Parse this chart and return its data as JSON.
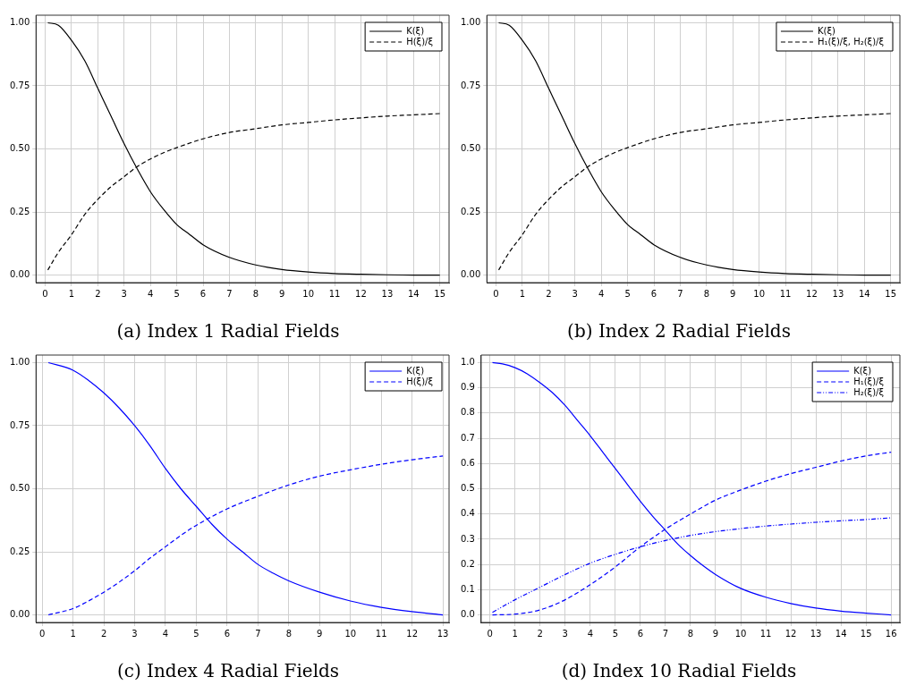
{
  "chart_data": [
    {
      "type": "line",
      "title": "(a) Index 1 Radial Fields",
      "xlim": [
        -0.35,
        15.35
      ],
      "ylim": [
        -0.03,
        1.03
      ],
      "xticks": [
        0,
        1,
        2,
        3,
        4,
        5,
        6,
        7,
        8,
        9,
        10,
        11,
        12,
        13,
        14,
        15
      ],
      "yticks": [
        {
          "value": 0,
          "label": "0.00"
        },
        {
          "value": 0.25,
          "label": "0.25"
        },
        {
          "value": 0.5,
          "label": "0.50"
        },
        {
          "value": 0.75,
          "label": "0.75"
        },
        {
          "value": 1,
          "label": "1.00"
        }
      ],
      "grid": true,
      "legend": "top right",
      "marker": "none",
      "series": [
        {
          "name": "K(ξ)",
          "color": "#000000",
          "line_style": "solid",
          "x": [
            0.1,
            0.5,
            1,
            1.5,
            2,
            2.5,
            3,
            3.5,
            4,
            4.5,
            5,
            5.5,
            6,
            7,
            8,
            9,
            10,
            11,
            12,
            13,
            14,
            15
          ],
          "values": [
            1.0,
            0.99,
            0.93,
            0.85,
            0.74,
            0.63,
            0.52,
            0.42,
            0.33,
            0.26,
            0.2,
            0.16,
            0.12,
            0.07,
            0.04,
            0.022,
            0.012,
            0.006,
            0.003,
            0.001,
            0.0,
            0.0
          ]
        },
        {
          "name": "H(ξ)/ξ",
          "color": "#000000",
          "line_style": "dashed",
          "x": [
            0.1,
            0.5,
            1,
            1.5,
            2,
            2.5,
            3,
            3.5,
            4,
            4.5,
            5,
            6,
            7,
            8,
            9,
            10,
            11,
            12,
            13,
            14,
            15
          ],
          "values": [
            0.02,
            0.09,
            0.16,
            0.24,
            0.3,
            0.35,
            0.39,
            0.43,
            0.46,
            0.485,
            0.505,
            0.54,
            0.565,
            0.58,
            0.595,
            0.605,
            0.615,
            0.623,
            0.63,
            0.635,
            0.64
          ]
        }
      ]
    },
    {
      "type": "line",
      "title": "(b) Index 2 Radial Fields",
      "xlim": [
        -0.35,
        15.35
      ],
      "ylim": [
        -0.03,
        1.03
      ],
      "xticks": [
        0,
        1,
        2,
        3,
        4,
        5,
        6,
        7,
        8,
        9,
        10,
        11,
        12,
        13,
        14,
        15
      ],
      "yticks": [
        {
          "value": 0,
          "label": "0.00"
        },
        {
          "value": 0.25,
          "label": "0.25"
        },
        {
          "value": 0.5,
          "label": "0.50"
        },
        {
          "value": 0.75,
          "label": "0.75"
        },
        {
          "value": 1,
          "label": "1.00"
        }
      ],
      "grid": true,
      "legend": "top right",
      "marker": "none",
      "series": [
        {
          "name": "K(ξ)",
          "color": "#000000",
          "line_style": "solid",
          "x": [
            0.1,
            0.5,
            1,
            1.5,
            2,
            2.5,
            3,
            3.5,
            4,
            4.5,
            5,
            5.5,
            6,
            7,
            8,
            9,
            10,
            11,
            12,
            13,
            14,
            15
          ],
          "values": [
            1.0,
            0.99,
            0.93,
            0.85,
            0.74,
            0.63,
            0.52,
            0.42,
            0.33,
            0.26,
            0.2,
            0.16,
            0.12,
            0.07,
            0.04,
            0.022,
            0.012,
            0.006,
            0.003,
            0.001,
            0.0,
            0.0
          ]
        },
        {
          "name": "H₁(ξ)/ξ, H₂(ξ)/ξ",
          "color": "#000000",
          "line_style": "dashed",
          "x": [
            0.1,
            0.5,
            1,
            1.5,
            2,
            2.5,
            3,
            3.5,
            4,
            4.5,
            5,
            6,
            7,
            8,
            9,
            10,
            11,
            12,
            13,
            14,
            15
          ],
          "values": [
            0.02,
            0.09,
            0.16,
            0.24,
            0.3,
            0.35,
            0.39,
            0.43,
            0.46,
            0.485,
            0.505,
            0.54,
            0.565,
            0.58,
            0.595,
            0.605,
            0.615,
            0.623,
            0.63,
            0.635,
            0.64
          ]
        }
      ]
    },
    {
      "type": "line",
      "title": "(c) Index 4 Radial Fields",
      "xlim": [
        -0.2,
        13.2
      ],
      "ylim": [
        -0.03,
        1.03
      ],
      "xticks": [
        0,
        1,
        2,
        3,
        4,
        5,
        6,
        7,
        8,
        9,
        10,
        11,
        12,
        13
      ],
      "yticks": [
        {
          "value": 0,
          "label": "0.00"
        },
        {
          "value": 0.25,
          "label": "0.25"
        },
        {
          "value": 0.5,
          "label": "0.50"
        },
        {
          "value": 0.75,
          "label": "0.75"
        },
        {
          "value": 1,
          "label": "1.00"
        }
      ],
      "grid": true,
      "legend": "top right",
      "marker": "none",
      "series": [
        {
          "name": "K(ξ)",
          "color": "#0000ff",
          "line_style": "solid",
          "x": [
            0.2,
            1,
            1.5,
            2,
            2.5,
            3,
            3.5,
            4,
            4.5,
            5,
            5.5,
            6,
            6.5,
            7,
            7.5,
            8,
            9,
            10,
            11,
            12,
            13
          ],
          "values": [
            1.0,
            0.97,
            0.93,
            0.88,
            0.82,
            0.75,
            0.67,
            0.58,
            0.5,
            0.43,
            0.36,
            0.3,
            0.25,
            0.2,
            0.165,
            0.135,
            0.09,
            0.055,
            0.03,
            0.013,
            0.0
          ]
        },
        {
          "name": "H(ξ)/ξ",
          "color": "#0000ff",
          "line_style": "dashed",
          "x": [
            0.2,
            1,
            1.5,
            2,
            2.5,
            3,
            3.5,
            4,
            4.5,
            5,
            6,
            7,
            8,
            9,
            10,
            11,
            12,
            13
          ],
          "values": [
            0.0,
            0.025,
            0.055,
            0.09,
            0.13,
            0.175,
            0.225,
            0.27,
            0.315,
            0.355,
            0.42,
            0.47,
            0.515,
            0.55,
            0.575,
            0.597,
            0.615,
            0.63
          ]
        }
      ]
    },
    {
      "type": "line",
      "title": "(d) Index 10 Radial Fields",
      "xlim": [
        -0.35,
        16.35
      ],
      "ylim": [
        -0.03,
        1.03
      ],
      "xticks": [
        0,
        1,
        2,
        3,
        4,
        5,
        6,
        7,
        8,
        9,
        10,
        11,
        12,
        13,
        14,
        15,
        16
      ],
      "yticks": [
        {
          "value": 0,
          "label": "0.0"
        },
        {
          "value": 0.1,
          "label": "0.1"
        },
        {
          "value": 0.2,
          "label": "0.2"
        },
        {
          "value": 0.3,
          "label": "0.3"
        },
        {
          "value": 0.4,
          "label": "0.4"
        },
        {
          "value": 0.5,
          "label": "0.5"
        },
        {
          "value": 0.6,
          "label": "0.6"
        },
        {
          "value": 0.7,
          "label": "0.7"
        },
        {
          "value": 0.8,
          "label": "0.8"
        },
        {
          "value": 0.9,
          "label": "0.9"
        },
        {
          "value": 1,
          "label": "1.0"
        }
      ],
      "grid": true,
      "legend": "top right",
      "marker": "none",
      "series": [
        {
          "name": "K(ξ)",
          "color": "#0000ff",
          "line_style": "solid",
          "x": [
            0.1,
            0.5,
            1,
            1.5,
            2,
            2.5,
            3,
            3.5,
            4,
            4.5,
            5,
            5.5,
            6,
            6.5,
            7,
            7.5,
            8,
            8.5,
            9,
            10,
            11,
            12,
            13,
            14,
            15,
            16
          ],
          "values": [
            1.0,
            0.995,
            0.98,
            0.955,
            0.92,
            0.88,
            0.83,
            0.77,
            0.71,
            0.645,
            0.58,
            0.515,
            0.45,
            0.39,
            0.335,
            0.28,
            0.235,
            0.195,
            0.16,
            0.105,
            0.07,
            0.045,
            0.027,
            0.015,
            0.007,
            0.0
          ]
        },
        {
          "name": "H₁(ξ)/ξ",
          "color": "#0000ff",
          "line_style": "dashed",
          "x": [
            0.1,
            1,
            2,
            3,
            4,
            5,
            6,
            7,
            8,
            9,
            10,
            11,
            12,
            13,
            14,
            15,
            16
          ],
          "values": [
            0.0,
            0.003,
            0.02,
            0.06,
            0.12,
            0.19,
            0.27,
            0.34,
            0.4,
            0.455,
            0.495,
            0.53,
            0.56,
            0.585,
            0.61,
            0.63,
            0.645
          ]
        },
        {
          "name": "H₂(ξ)/ξ",
          "color": "#0000ff",
          "line_style": "dotted",
          "x": [
            0.1,
            1,
            2,
            3,
            4,
            5,
            6,
            7,
            8,
            9,
            10,
            11,
            12,
            13,
            14,
            15,
            16
          ],
          "values": [
            0.01,
            0.06,
            0.11,
            0.16,
            0.205,
            0.24,
            0.27,
            0.295,
            0.315,
            0.33,
            0.342,
            0.352,
            0.36,
            0.367,
            0.373,
            0.378,
            0.385
          ]
        }
      ]
    }
  ]
}
